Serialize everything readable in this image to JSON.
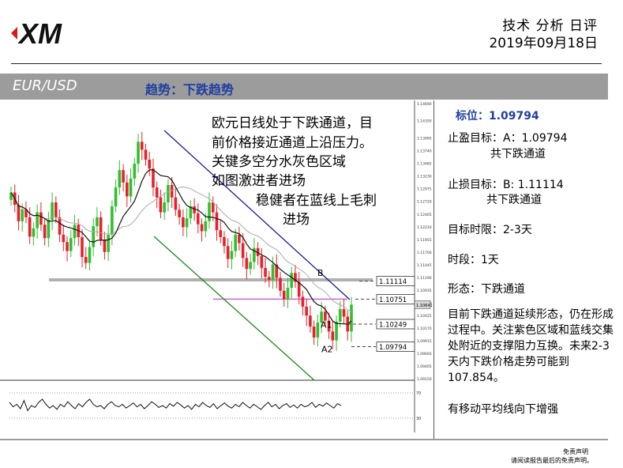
{
  "header": {
    "title": "技术 分析 日评",
    "date": "2019年09月18日"
  },
  "banner": {
    "pair": "EUR/USD",
    "trend": "趋势：下跌趋势"
  },
  "side": {
    "target": "标位：1.09794",
    "take_profit_1": "止盈目标：A：1.09794",
    "take_profit_2": "共下跌通道",
    "stop_loss_1": "止损目标：B: 1.11114",
    "stop_loss_2": "共下跌通道",
    "timeframe": "目标时限：2-3天",
    "period": "时段：1天",
    "pattern": "形态：下跌通道",
    "description": "目前下跌通道延续形态，仍在形成过程中。关注紫色区域和蓝线交集处附近的支撑阻力互换。未来2-3天内下跌价格走势可能到107.854。",
    "note": "有移动平均线向下增强"
  },
  "annotation": {
    "line1": "欧元日线处于下跌通道，目",
    "line2": "前价格接近通道上沿压力。",
    "line3": "关键多空分水灰色区域",
    "line4": "如图激进者进场",
    "line5": "稳健者在蓝线上毛刺",
    "line6": "进场"
  },
  "disclaimer": {
    "line1": "免责声明",
    "line2": "请阅读报告最后的免责声明。"
  },
  "colors": {
    "banner": "#9c9c9c",
    "trend_text": "#1f3fa0",
    "bull": "#2fbf2f",
    "bear": "#e8202a",
    "channel_upper": "#1a1aa0",
    "channel_lower": "#1a8a1a",
    "purple_zone": "#cc66cc",
    "gray_zone": "#b0b0b0"
  },
  "chart_data": {
    "type": "candlestick",
    "ylim": [
      1.0915,
      1.1469
    ],
    "y_ticks": [
      "1.14690",
      "1.14350",
      "1.13995",
      "1.13740",
      "1.13485",
      "1.13230",
      "1.12975",
      "1.12720",
      "1.12465",
      "1.12210",
      "1.11955",
      "1.11700",
      "1.11445",
      "1.11190",
      "1.10935",
      "1.10680",
      "1.10425",
      "1.10170",
      "1.09915",
      "1.09660",
      "1.09405",
      "1.09150"
    ],
    "current_price": "1.10641",
    "levels": [
      {
        "label": "B",
        "value": 1.11114,
        "text": "1.11114"
      },
      {
        "label": "",
        "value": 1.10751,
        "text": "1.10751"
      },
      {
        "label": "A1",
        "value": 1.10249,
        "text": "1.10249"
      },
      {
        "label": "A2",
        "value": 1.09794,
        "text": "1.09794"
      }
    ],
    "close": [
      1.129,
      1.1265,
      1.1232,
      1.1256,
      1.124,
      1.1201,
      1.1218,
      1.125,
      1.1225,
      1.1198,
      1.1235,
      1.127,
      1.124,
      1.1205,
      1.119,
      1.1172,
      1.1198,
      1.1225,
      1.12,
      1.116,
      1.1148,
      1.118,
      1.1222,
      1.124,
      1.1195,
      1.117,
      1.1205,
      1.1262,
      1.13,
      1.1335,
      1.131,
      1.1282,
      1.1318,
      1.1348,
      1.1392,
      1.1376,
      1.1356,
      1.1338,
      1.13,
      1.128,
      1.125,
      1.127,
      1.1305,
      1.128,
      1.1255,
      1.124,
      1.122,
      1.1238,
      1.1262,
      1.1248,
      1.1226,
      1.1212,
      1.1232,
      1.127,
      1.125,
      1.1214,
      1.12,
      1.1182,
      1.1156,
      1.1172,
      1.1205,
      1.1188,
      1.1158,
      1.1136,
      1.115,
      1.1178,
      1.1162,
      1.1138,
      1.112,
      1.1114,
      1.1145,
      1.1118,
      1.1092,
      1.1075,
      1.1098,
      1.1128,
      1.111,
      1.108,
      1.106,
      1.1042,
      1.102,
      1.0998,
      1.1028,
      1.105,
      1.1032,
      1.101,
      1.0992,
      1.103,
      1.1055,
      1.104,
      1.101,
      1.1064
    ],
    "rsi": [
      55,
      48,
      52,
      45,
      58,
      42,
      50,
      47,
      55,
      60,
      52,
      46,
      50,
      44,
      52,
      48,
      56,
      50,
      45,
      53,
      48,
      55,
      60,
      52,
      48,
      50,
      45,
      52,
      56,
      50,
      48,
      52,
      46,
      50,
      54,
      48,
      52,
      45,
      50,
      56,
      52,
      47,
      50,
      46,
      53,
      49,
      55,
      51,
      46,
      50,
      44,
      52,
      48,
      55,
      50,
      47,
      53,
      45,
      50,
      54,
      49,
      46,
      52,
      48,
      55,
      50,
      46,
      52,
      48,
      44,
      50,
      55,
      48,
      52,
      45,
      50,
      53,
      47,
      51,
      46,
      52,
      48,
      50,
      55,
      47,
      52,
      49,
      54,
      50,
      46,
      53,
      50
    ]
  }
}
